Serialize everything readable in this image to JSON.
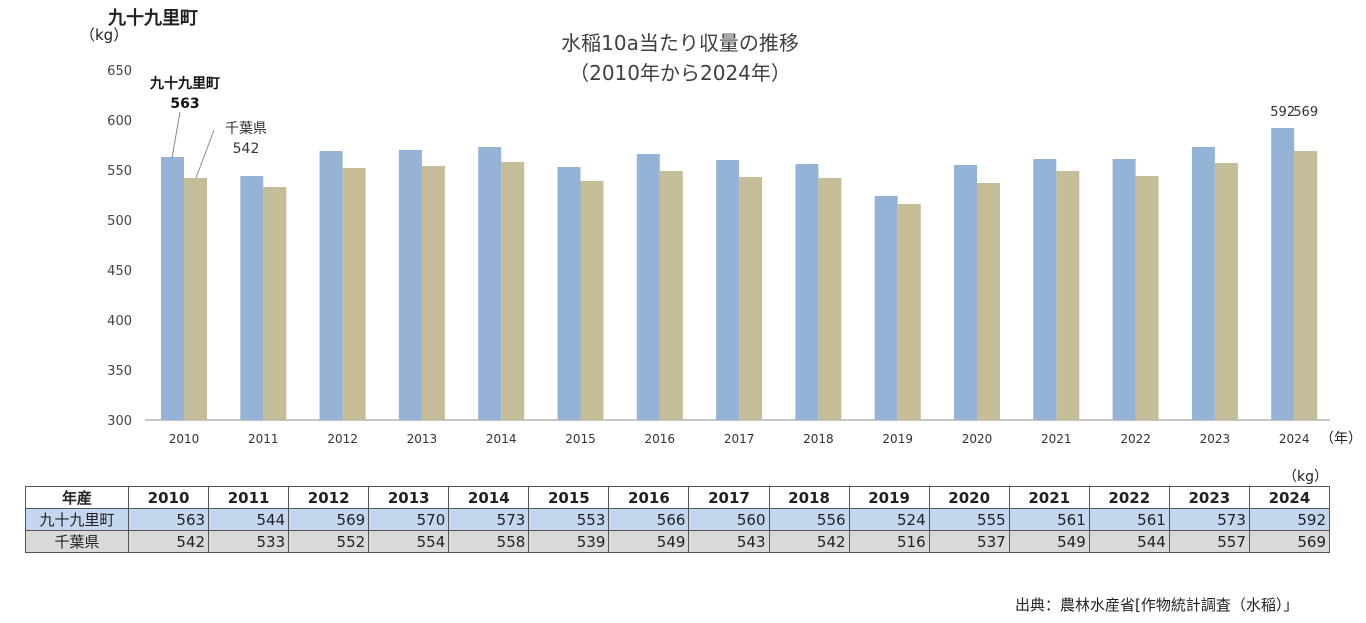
{
  "page": {
    "title": "九十九里町",
    "source": "出典：農林水産省[作物統計調査（水稲）」"
  },
  "colors": {
    "series_a": "#95b3d7",
    "series_b": "#c4bd97",
    "row_a_bg": "#c5d7ee",
    "row_b_bg": "#d9d9d9"
  },
  "chart_data": {
    "type": "bar",
    "title": "水稲10a当たり収量の推移",
    "subtitle": "（2010年から2024年）",
    "ylabel": "（kg）",
    "xlabel": "（年）",
    "ylim": [
      300,
      650
    ],
    "yticks": [
      300,
      350,
      400,
      450,
      500,
      550,
      600,
      650
    ],
    "grid": false,
    "categories": [
      "2010",
      "2011",
      "2012",
      "2013",
      "2014",
      "2015",
      "2016",
      "2017",
      "2018",
      "2019",
      "2020",
      "2021",
      "2022",
      "2023",
      "2024"
    ],
    "series": [
      {
        "name": "九十九里町",
        "values": [
          563,
          544,
          569,
          570,
          573,
          553,
          566,
          560,
          556,
          524,
          555,
          561,
          561,
          573,
          592
        ]
      },
      {
        "name": "千葉県",
        "values": [
          542,
          533,
          552,
          554,
          558,
          539,
          549,
          543,
          542,
          516,
          537,
          549,
          544,
          557,
          569
        ]
      }
    ],
    "annotations": [
      {
        "series_name": "九十九里町",
        "value": "563"
      },
      {
        "series_name": "千葉県",
        "value": "542"
      }
    ],
    "data_labels_2024": [
      "592",
      "569"
    ]
  },
  "table": {
    "unit": "（kg）",
    "header_label": "年産"
  }
}
